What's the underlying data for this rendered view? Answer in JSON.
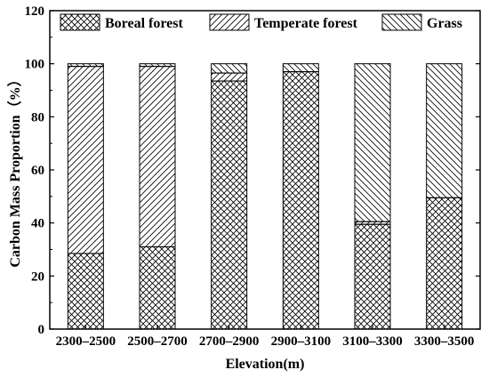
{
  "chart_data": {
    "type": "bar",
    "stacked": true,
    "xlabel": "Elevation(m)",
    "ylabel": "Carbon Mass Proportion（%）",
    "ylim": [
      0,
      120
    ],
    "yticks": [
      0,
      20,
      40,
      60,
      80,
      100,
      120
    ],
    "grid": false,
    "legend_position": "top",
    "categories": [
      "2300–2500",
      "2500–2700",
      "2700–2900",
      "2900–3100",
      "3100–3300",
      "3300–3500"
    ],
    "series": [
      {
        "name": "Boreal forest",
        "pattern": "crosshatch",
        "values": [
          28.5,
          31,
          93.5,
          97,
          39.5,
          49.5
        ]
      },
      {
        "name": "Temperate forest",
        "pattern": "forward-diagonal",
        "values": [
          70.5,
          68,
          3,
          0,
          1,
          0
        ]
      },
      {
        "name": "Grass",
        "pattern": "back-diagonal",
        "values": [
          1,
          1,
          3.5,
          3,
          59.5,
          50.5
        ]
      }
    ],
    "colors": {
      "stroke": "#000000",
      "background": "#ffffff"
    }
  }
}
